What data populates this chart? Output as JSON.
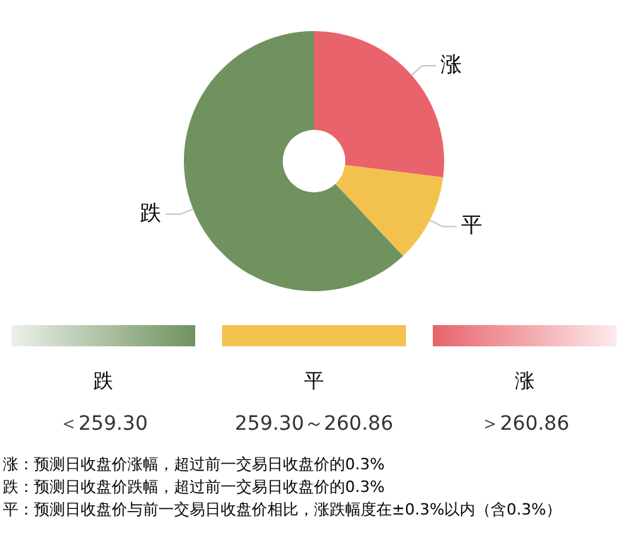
{
  "chart_data": {
    "type": "donut",
    "categories": [
      "涨",
      "平",
      "跌"
    ],
    "values": [
      27,
      11,
      62
    ],
    "colors": [
      "#e8636b",
      "#f3c24e",
      "#6f925e"
    ],
    "annotations": [
      "＞260.86",
      "259.30～260.86",
      "＜259.30",
      "涨：预测日收盘价涨幅，超过前一交易日收盘价的0.3%",
      "跌：预测日收盘价跌幅，超过前一交易日收盘价的0.3%",
      "平：预测日收盘价与前一交易日收盘价相比，涨跌幅度在±0.3%以内（含0.3%）"
    ]
  }
}
